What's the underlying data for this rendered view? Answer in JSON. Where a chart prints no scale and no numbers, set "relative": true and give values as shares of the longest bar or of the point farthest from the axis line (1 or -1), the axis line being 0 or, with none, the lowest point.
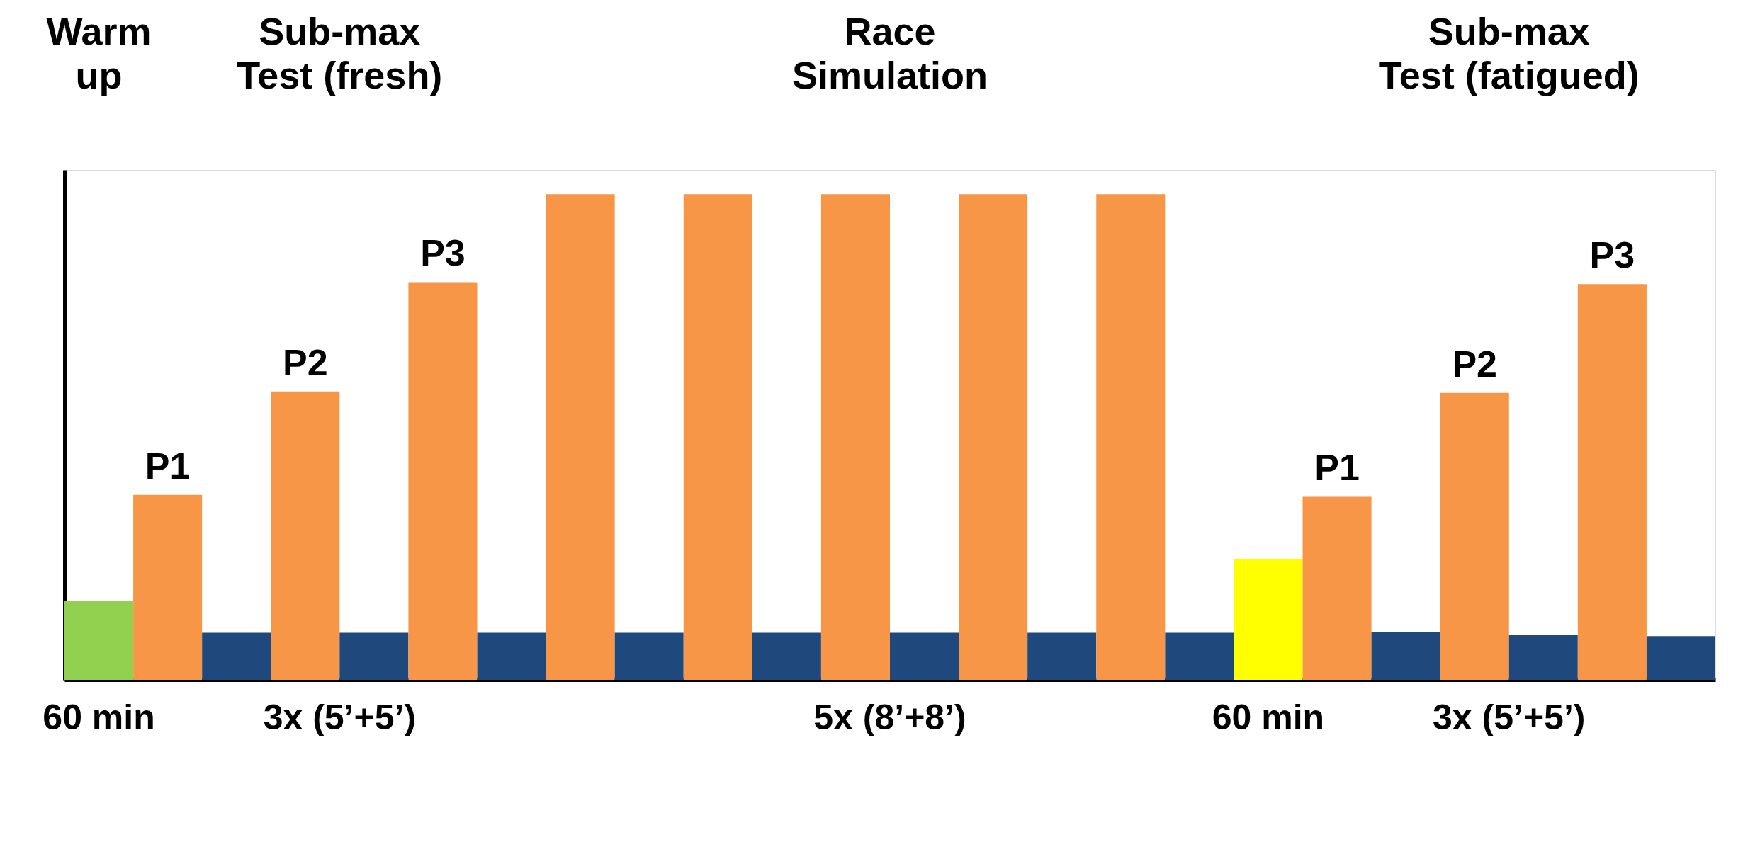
{
  "chart_data": {
    "type": "bar",
    "relative": true,
    "categories": [
      null,
      null,
      null,
      null,
      null,
      null,
      null,
      null,
      null,
      null,
      null,
      null,
      null,
      null,
      null,
      null,
      null,
      null,
      null,
      null,
      null,
      null,
      null,
      null
    ],
    "values": [
      0.163,
      0.381,
      0.097,
      0.594,
      0.097,
      0.819,
      0.097,
      1,
      0.097,
      1,
      0.097,
      1,
      0.097,
      1,
      0.097,
      1,
      0.097,
      0.248,
      0.377,
      0.099,
      0.591,
      0.093,
      0.815,
      0.09
    ],
    "colors": [
      "#92d050",
      "#f79646",
      "#1f497d",
      "#f79646",
      "#1f497d",
      "#f79646",
      "#1f497d",
      "#f79646",
      "#1f497d",
      "#f79646",
      "#1f497d",
      "#f79646",
      "#1f497d",
      "#f79646",
      "#1f497d",
      "#f79646",
      "#1f497d",
      "#ffff00",
      "#f79646",
      "#1f497d",
      "#f79646",
      "#1f497d",
      "#f79646",
      "#1f497d"
    ],
    "annotations": [
      "Warm up",
      "Sub-max Test (fresh)",
      "Race Simulation",
      "Sub-max Test (fatigued)",
      "60 min",
      "3x (5’+5’)",
      "5x (8’+8’)",
      "60 min",
      "3x (5’+5’)",
      "P1",
      "P2",
      "P3",
      "P1",
      "P2",
      "P3"
    ],
    "grid": false
  }
}
